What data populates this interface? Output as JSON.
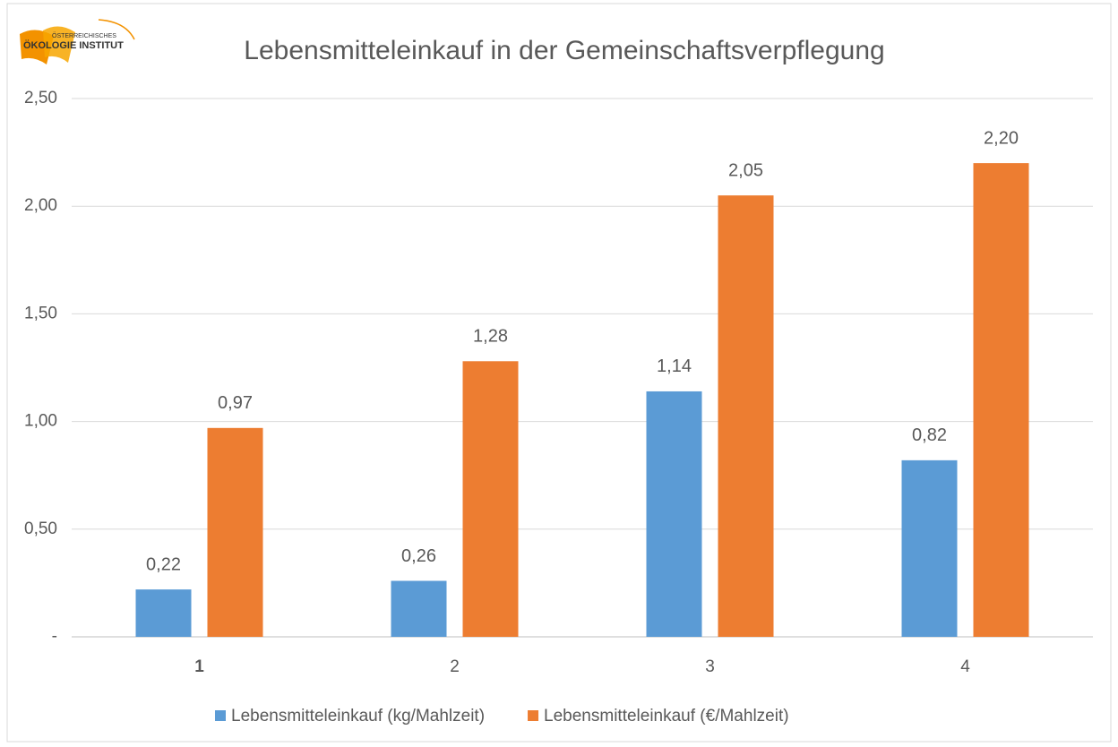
{
  "chart_data": {
    "type": "bar",
    "title": "Lebensmitteleinkauf in der Gemeinschaftsverpflegung",
    "logo": {
      "line1": "ÖSTERREICHISCHES",
      "line2": "ÖKOLOGIE INSTITUT"
    },
    "categories": [
      "1",
      "2",
      "3",
      "4"
    ],
    "series": [
      {
        "name": "Lebensmitteleinkauf (kg/Mahlzeit)",
        "color": "#5b9bd5",
        "values": [
          0.22,
          0.26,
          1.14,
          0.82
        ],
        "value_labels": [
          "0,22",
          "0,26",
          "1,14",
          "0,82"
        ]
      },
      {
        "name": "Lebensmitteleinkauf (€/Mahlzeit)",
        "color": "#ed7d31",
        "values": [
          0.97,
          1.28,
          2.05,
          2.2
        ],
        "value_labels": [
          "0,97",
          "1,28",
          "2,05",
          "2,20"
        ]
      }
    ],
    "ylim": [
      0,
      2.5
    ],
    "yticks": [
      {
        "value": 0,
        "label": "-"
      },
      {
        "value": 0.5,
        "label": "0,50"
      },
      {
        "value": 1,
        "label": "1,00"
      },
      {
        "value": 1.5,
        "label": "1,50"
      },
      {
        "value": 2,
        "label": "2,00"
      },
      {
        "value": 2.5,
        "label": "2,50"
      }
    ],
    "grid": true,
    "legend": "bottom"
  }
}
